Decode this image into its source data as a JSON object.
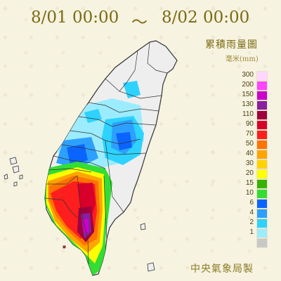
{
  "title": {
    "start": "8/01 00:00",
    "tilde": "～",
    "end": "8/02 00:00"
  },
  "legend": {
    "title": "累積雨量圖",
    "unit": "毫米(mm)",
    "items": [
      {
        "value": "300",
        "color": "#ffd6ff"
      },
      {
        "value": "200",
        "color": "#ff44ff"
      },
      {
        "value": "150",
        "color": "#cc00cc"
      },
      {
        "value": "130",
        "color": "#8a1fa0"
      },
      {
        "value": "110",
        "color": "#a0003c"
      },
      {
        "value": "90",
        "color": "#d8002a"
      },
      {
        "value": "70",
        "color": "#ff1e1e"
      },
      {
        "value": "50",
        "color": "#ff7300"
      },
      {
        "value": "40",
        "color": "#ffa500"
      },
      {
        "value": "30",
        "color": "#ffd200"
      },
      {
        "value": "20",
        "color": "#ffff00"
      },
      {
        "value": "15",
        "color": "#37b200"
      },
      {
        "value": "10",
        "color": "#33dd33"
      },
      {
        "value": "6",
        "color": "#0a64ff"
      },
      {
        "value": "4",
        "color": "#2da0ff"
      },
      {
        "value": "2",
        "color": "#2dd2ff"
      },
      {
        "value": "1",
        "color": "#9cecff"
      },
      {
        "value": "",
        "color": "#c8c8c8"
      }
    ]
  },
  "credit": "中央氣象局製"
}
